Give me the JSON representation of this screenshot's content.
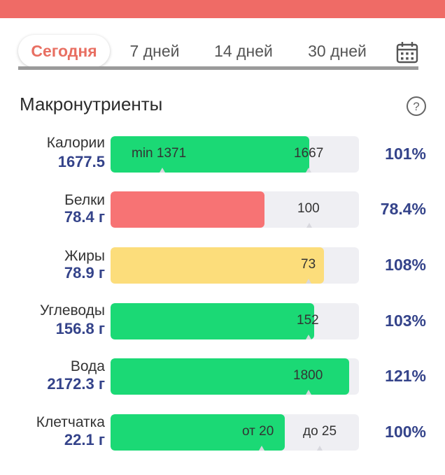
{
  "tabs": [
    {
      "label": "Сегодня",
      "active": true
    },
    {
      "label": "7 дней",
      "active": false
    },
    {
      "label": "14 дней",
      "active": false
    },
    {
      "label": "30 дней",
      "active": false
    }
  ],
  "section": {
    "title": "Макронутриенты"
  },
  "icons": {
    "calendar": "calendar-icon",
    "help": "help-circle-icon"
  },
  "colors": {
    "accent": "#e86f62",
    "topbar": "#ef6b66",
    "green": "#1bd975",
    "red": "#f77374",
    "yellow": "#fcdd7b",
    "value": "#34438a"
  },
  "rows": [
    {
      "label": "Калории",
      "value": "1677.5",
      "fill_fraction": 0.8,
      "color": "green",
      "mark1": "min 1371",
      "mark2": "1667",
      "percent": "101%"
    },
    {
      "label": "Белки",
      "value": "78.4 г",
      "fill_fraction": 0.62,
      "color": "red",
      "mark1": "",
      "mark2": "100",
      "percent": "78.4%"
    },
    {
      "label": "Жиры",
      "value": "78.9 г",
      "fill_fraction": 0.86,
      "color": "yellow",
      "mark1": "",
      "mark2": "73",
      "percent": "108%"
    },
    {
      "label": "Углеводы",
      "value": "156.8 г",
      "fill_fraction": 0.82,
      "color": "green",
      "mark1": "",
      "mark2": "152",
      "percent": "103%"
    },
    {
      "label": "Вода",
      "value": "2172.3 г",
      "fill_fraction": 0.96,
      "color": "green",
      "mark1": "",
      "mark2": "1800",
      "percent": "121%"
    },
    {
      "label": "Клетчатка",
      "value": "22.1 г",
      "fill_fraction": 0.7,
      "color": "green",
      "mark1": "от 20",
      "mark2": "до 25",
      "percent": "100%"
    }
  ]
}
